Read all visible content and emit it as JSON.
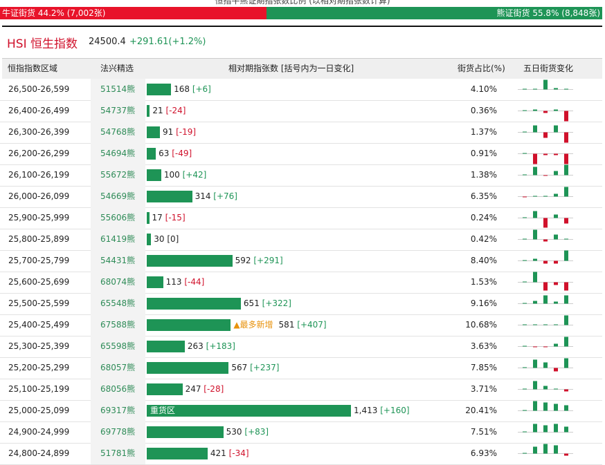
{
  "header": {
    "caption": "恒指牛熊证期指张数比例 (以相对期指张数计算)",
    "bull": "牛证街货 44.2% (7,002张)",
    "bear": "熊证街货 55.8% (8,848张)",
    "bull_share": 44.2,
    "index_name": "HSI 恒生指数",
    "index_value": "24500.4",
    "index_change": "+291.61(+1.2%)"
  },
  "table": {
    "columns": [
      "恒指指数区域",
      "法兴精选",
      "相对期指张数 [括号内为一日变化]",
      "街货占比(%)",
      "五日街货变化"
    ],
    "rows": [
      {
        "range": "26,500-26,599",
        "code": "51514熊",
        "contracts": 168,
        "change": "[+6]",
        "share": "4.10%",
        "five_day": [
          0,
          1,
          14,
          2,
          1
        ]
      },
      {
        "range": "26,400-26,499",
        "code": "54737熊",
        "contracts": 21,
        "change": "[-24]",
        "share": "0.36%",
        "five_day": [
          0,
          2,
          -3,
          2,
          -15
        ]
      },
      {
        "range": "26,300-26,399",
        "code": "54768熊",
        "contracts": 91,
        "change": "[-19]",
        "share": "1.37%",
        "five_day": [
          0,
          10,
          -8,
          10,
          -15
        ]
      },
      {
        "range": "26,200-26,299",
        "code": "54694熊",
        "contracts": 63,
        "change": "[-49]",
        "share": "0.91%",
        "five_day": [
          0,
          -15,
          -2,
          -2,
          -15
        ]
      },
      {
        "range": "26,100-26,199",
        "code": "55672熊",
        "contracts": 100,
        "change": "[+42]",
        "share": "1.38%",
        "five_day": [
          0,
          12,
          -1,
          6,
          15
        ]
      },
      {
        "range": "26,000-26,099",
        "code": "54669熊",
        "contracts": 314,
        "change": "[+76]",
        "share": "6.35%",
        "five_day": [
          -1,
          0,
          1,
          4,
          14
        ]
      },
      {
        "range": "25,900-25,999",
        "code": "55606熊",
        "contracts": 17,
        "change": "[-15]",
        "share": "0.24%",
        "five_day": [
          0,
          10,
          -14,
          5,
          -8
        ]
      },
      {
        "range": "25,800-25,899",
        "code": "61419熊",
        "contracts": 30,
        "change": "[0]",
        "share": "0.42%",
        "five_day": [
          0,
          14,
          -3,
          7,
          0
        ]
      },
      {
        "range": "25,700-25,799",
        "code": "54431熊",
        "contracts": 592,
        "change": "[+291]",
        "share": "8.40%",
        "five_day": [
          0,
          3,
          -4,
          -4,
          15
        ]
      },
      {
        "range": "25,600-25,699",
        "code": "68074熊",
        "contracts": 113,
        "change": "[-44]",
        "share": "1.53%",
        "five_day": [
          0,
          15,
          -12,
          -4,
          -12
        ]
      },
      {
        "range": "25,500-25,599",
        "code": "65548熊",
        "contracts": 651,
        "change": "[+322]",
        "share": "9.16%",
        "five_day": [
          0,
          4,
          12,
          3,
          12
        ]
      },
      {
        "range": "25,400-25,499",
        "code": "67588熊",
        "contracts": 581,
        "change": "[+407]",
        "share": "10.68%",
        "note": "▲最多新增",
        "five_day": [
          0,
          0,
          0,
          1,
          14
        ]
      },
      {
        "range": "25,300-25,399",
        "code": "65598熊",
        "contracts": 263,
        "change": "[+183]",
        "share": "3.63%",
        "five_day": [
          0,
          -1,
          -1,
          4,
          14
        ]
      },
      {
        "range": "25,200-25,299",
        "code": "68057熊",
        "contracts": 567,
        "change": "[+237]",
        "share": "7.85%",
        "five_day": [
          0,
          12,
          8,
          -5,
          14
        ]
      },
      {
        "range": "25,100-25,199",
        "code": "68056熊",
        "contracts": 247,
        "change": "[-28]",
        "share": "3.71%",
        "five_day": [
          0,
          12,
          5,
          0,
          -3
        ]
      },
      {
        "range": "25,000-25,099",
        "code": "69317熊",
        "contracts": 1413,
        "contracts_label": "1,413",
        "change": "[+160]",
        "share": "20.41%",
        "inside_label": "重货区",
        "five_day": [
          0,
          14,
          12,
          10,
          8
        ]
      },
      {
        "range": "24,900-24,999",
        "code": "69778熊",
        "contracts": 530,
        "change": "[+83]",
        "share": "7.51%",
        "five_day": [
          0,
          12,
          10,
          12,
          8
        ]
      },
      {
        "range": "24,800-24,899",
        "code": "51781熊",
        "contracts": 421,
        "change": "[-34]",
        "share": "6.93%",
        "five_day": [
          0,
          10,
          14,
          12,
          -3
        ]
      }
    ]
  }
}
